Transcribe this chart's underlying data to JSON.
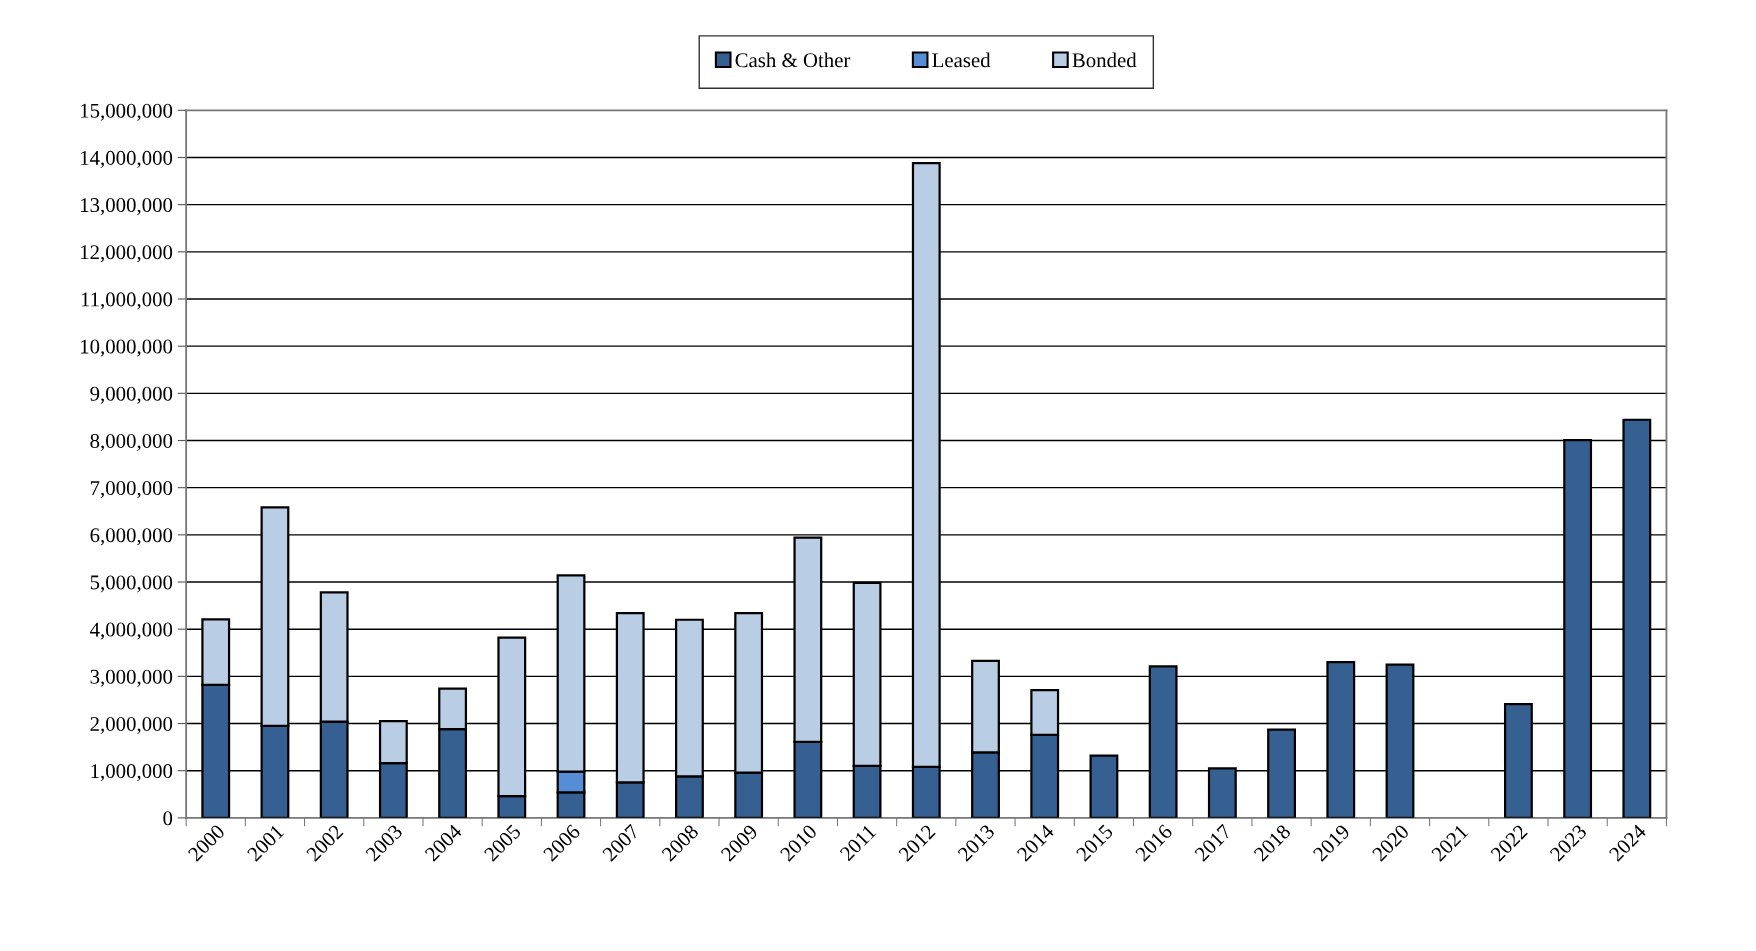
{
  "chart_data": {
    "type": "bar",
    "stacked": true,
    "categories": [
      "2000",
      "2001",
      "2002",
      "2003",
      "2004",
      "2005",
      "2006",
      "2007",
      "2008",
      "2009",
      "2010",
      "2011",
      "2012",
      "2013",
      "2014",
      "2015",
      "2016",
      "2017",
      "2018",
      "2019",
      "2020",
      "2021",
      "2022",
      "2023",
      "2024"
    ],
    "series": [
      {
        "name": "Cash & Other",
        "color": "#376092",
        "values": [
          2820000,
          1950000,
          2040000,
          1160000,
          1880000,
          460000,
          540000,
          750000,
          880000,
          960000,
          1610000,
          1100000,
          1080000,
          1390000,
          1760000,
          1320000,
          3210000,
          1050000,
          1870000,
          3300000,
          3250000,
          0,
          2410000,
          8010000,
          8440000
        ]
      },
      {
        "name": "Leased",
        "color": "#558ed5",
        "values": [
          0,
          0,
          0,
          0,
          0,
          0,
          440000,
          0,
          0,
          0,
          0,
          0,
          0,
          0,
          0,
          0,
          0,
          0,
          0,
          0,
          0,
          0,
          0,
          0,
          0
        ]
      },
      {
        "name": "Bonded",
        "color": "#b9cde5",
        "values": [
          1390000,
          4630000,
          2740000,
          890000,
          860000,
          3360000,
          4160000,
          3590000,
          3320000,
          3380000,
          4330000,
          3880000,
          12800000,
          1940000,
          950000,
          0,
          0,
          0,
          0,
          0,
          0,
          0,
          0,
          0,
          0
        ]
      }
    ],
    "ylim": [
      0,
      15000000
    ],
    "yticks": [
      0,
      {
        "value": 1000000,
        "label": "1,000,000"
      },
      {
        "value": 2000000,
        "label": "2,000,000"
      },
      {
        "value": 3000000,
        "label": "3,000,000"
      },
      {
        "value": 4000000,
        "label": "4,000,000"
      },
      {
        "value": 5000000,
        "label": "5,000,000"
      },
      {
        "value": 6000000,
        "label": "6,000,000"
      },
      {
        "value": 7000000,
        "label": "7,000,000"
      },
      {
        "value": 8000000,
        "label": "8,000,000"
      },
      {
        "value": 9000000,
        "label": "9,000,000"
      },
      {
        "value": 10000000,
        "label": "10,000,000"
      },
      {
        "value": 11000000,
        "label": "11,000,000"
      },
      {
        "value": 12000000,
        "label": "12,000,000"
      },
      {
        "value": 13000000,
        "label": "13,000,000"
      },
      {
        "value": 14000000,
        "label": "14,000,000"
      },
      {
        "value": 15000000,
        "label": "15,000,000"
      }
    ],
    "grid": "y",
    "legend": "top"
  }
}
